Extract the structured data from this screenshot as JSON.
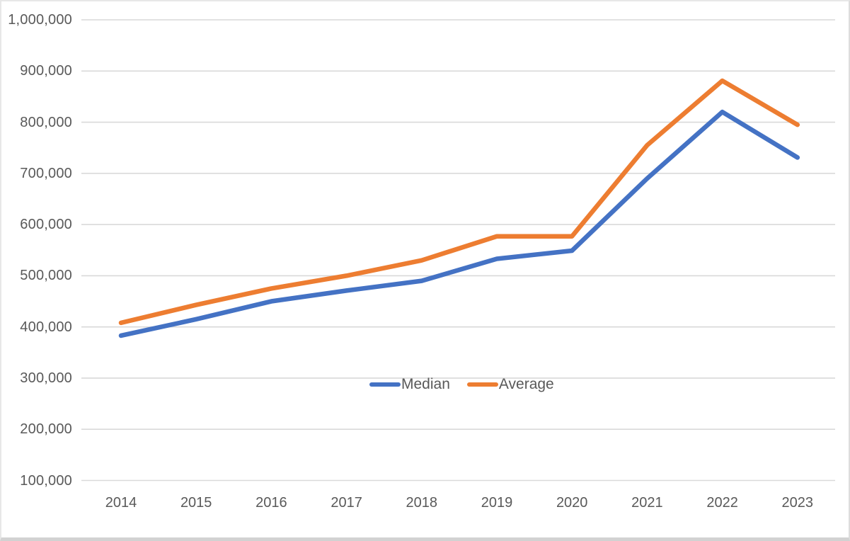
{
  "chart_data": {
    "type": "line",
    "title": "",
    "xlabel": "",
    "ylabel": "",
    "categories": [
      "2014",
      "2015",
      "2016",
      "2017",
      "2018",
      "2019",
      "2020",
      "2021",
      "2022",
      "2023"
    ],
    "series": [
      {
        "name": "Median",
        "color": "#4472C4",
        "values": [
          383000,
          415000,
          450000,
          471000,
          490000,
          533000,
          549000,
          690000,
          820000,
          731000
        ]
      },
      {
        "name": "Average",
        "color": "#ED7D31",
        "values": [
          408000,
          443000,
          475000,
          500000,
          530000,
          577000,
          577000,
          755000,
          881000,
          795000
        ]
      }
    ],
    "ylim": [
      100000,
      1000000
    ],
    "y_tick_step": 100000,
    "y_tick_labels": [
      "100,000",
      "200,000",
      "300,000",
      "400,000",
      "500,000",
      "600,000",
      "700,000",
      "800,000",
      "900,000",
      "1,000,000"
    ],
    "grid": true,
    "gridline_color": "#D9D9D9",
    "tick_text_color": "#595959",
    "legend_position": "inside-center",
    "legend": [
      "Median",
      "Average"
    ]
  }
}
